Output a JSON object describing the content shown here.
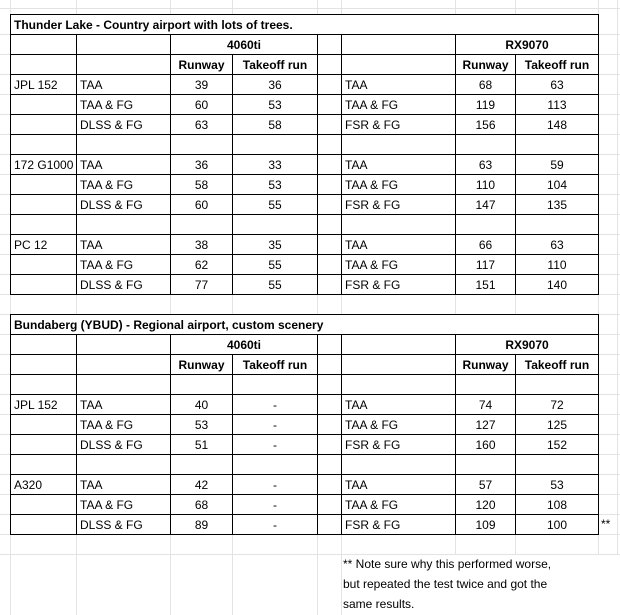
{
  "sections": [
    {
      "title": "Thunder Lake - Country airport with lots of trees.",
      "gpus": [
        "4060ti",
        "RX9070"
      ],
      "col_headers": [
        "Runway",
        "Takeoff run"
      ],
      "blank_row_after_header": false,
      "groups": [
        {
          "aircraft": "JPL 152",
          "rows": [
            {
              "left_setting": "TAA",
              "left_values": [
                "39",
                "36"
              ],
              "right_setting": "TAA",
              "right_values": [
                "68",
                "63"
              ]
            },
            {
              "left_setting": "TAA & FG",
              "left_values": [
                "60",
                "53"
              ],
              "right_setting": "TAA & FG",
              "right_values": [
                "119",
                "113"
              ]
            },
            {
              "left_setting": "DLSS & FG",
              "left_values": [
                "63",
                "58"
              ],
              "right_setting": "FSR & FG",
              "right_values": [
                "156",
                "148"
              ]
            }
          ]
        },
        {
          "aircraft": "172 G1000",
          "rows": [
            {
              "left_setting": "TAA",
              "left_values": [
                "36",
                "33"
              ],
              "right_setting": "TAA",
              "right_values": [
                "63",
                "59"
              ]
            },
            {
              "left_setting": "TAA & FG",
              "left_values": [
                "58",
                "53"
              ],
              "right_setting": "TAA & FG",
              "right_values": [
                "110",
                "104"
              ]
            },
            {
              "left_setting": "DLSS & FG",
              "left_values": [
                "60",
                "55"
              ],
              "right_setting": "FSR & FG",
              "right_values": [
                "147",
                "135"
              ]
            }
          ]
        },
        {
          "aircraft": "PC 12",
          "rows": [
            {
              "left_setting": "TAA",
              "left_values": [
                "38",
                "35"
              ],
              "right_setting": "TAA",
              "right_values": [
                "66",
                "63"
              ]
            },
            {
              "left_setting": "TAA & FG",
              "left_values": [
                "62",
                "55"
              ],
              "right_setting": "TAA & FG",
              "right_values": [
                "117",
                "110"
              ]
            },
            {
              "left_setting": "DLSS & FG",
              "left_values": [
                "77",
                "55"
              ],
              "right_setting": "FSR & FG",
              "right_values": [
                "151",
                "140"
              ]
            }
          ]
        }
      ]
    },
    {
      "title": "Bundaberg (YBUD) - Regional airport, custom scenery",
      "gpus": [
        "4060ti",
        "RX9070"
      ],
      "col_headers": [
        "Runway",
        "Takeoff run"
      ],
      "blank_row_after_header": true,
      "groups": [
        {
          "aircraft": "JPL 152",
          "rows": [
            {
              "left_setting": "TAA",
              "left_values": [
                "40",
                "-"
              ],
              "right_setting": "TAA",
              "right_values": [
                "74",
                "72"
              ]
            },
            {
              "left_setting": "TAA & FG",
              "left_values": [
                "53",
                "-"
              ],
              "right_setting": "TAA & FG",
              "right_values": [
                "127",
                "125"
              ]
            },
            {
              "left_setting": "DLSS & FG",
              "left_values": [
                "51",
                "-"
              ],
              "right_setting": "FSR & FG",
              "right_values": [
                "160",
                "152"
              ]
            }
          ]
        },
        {
          "aircraft": "A320",
          "rows": [
            {
              "left_setting": "TAA",
              "left_values": [
                "42",
                "-"
              ],
              "right_setting": "TAA",
              "right_values": [
                "57",
                "53"
              ]
            },
            {
              "left_setting": "TAA & FG",
              "left_values": [
                "68",
                "-"
              ],
              "right_setting": "TAA & FG",
              "right_values": [
                "120",
                "108"
              ]
            },
            {
              "left_setting": "DLSS & FG",
              "left_values": [
                "89",
                "-"
              ],
              "right_setting": "FSR & FG",
              "right_values": [
                "109",
                "100"
              ]
            }
          ]
        }
      ]
    }
  ],
  "footnote_marker": "**",
  "note": {
    "lines": [
      "** Note sure why this performed worse,",
      "but repeated the test twice and got the",
      "same results."
    ]
  }
}
